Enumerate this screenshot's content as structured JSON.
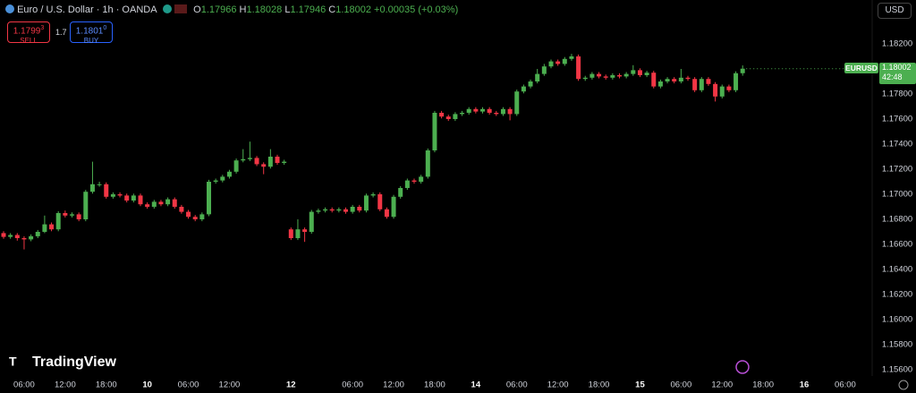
{
  "chart_data": {
    "type": "candlestick",
    "title": "Euro / U.S. Dollar · 1h · OANDA",
    "header": {
      "open_label": "O",
      "open": "1.17966",
      "high_label": "H",
      "high": "1.18028",
      "low_label": "L",
      "low": "1.17946",
      "close_label": "C",
      "close": "1.18002",
      "change": "+0.00035 (+0.03%)"
    },
    "trade": {
      "sell_price": "1.1799",
      "sell_pip": "3",
      "sell_label": "SELL",
      "spread": "1.7",
      "buy_price": "1.1801",
      "buy_pip": "0",
      "buy_label": "BUY"
    },
    "currency": "USD",
    "price_label": {
      "symbol": "EURUSD",
      "price": "1.18002",
      "countdown": "42:48"
    },
    "brand": "TradingView",
    "up_color": "#4caf50",
    "down_color": "#f23645",
    "grid": false,
    "categories": [
      null,
      null,
      null,
      "06:00",
      null,
      null,
      null,
      null,
      null,
      "12:00",
      null,
      null,
      null,
      null,
      null,
      "18:00",
      null,
      null,
      null,
      null,
      null,
      "10",
      null,
      null,
      null,
      null,
      null,
      "06:00",
      null,
      null,
      null,
      null,
      null,
      "12:00",
      null,
      null,
      null,
      null,
      null,
      null,
      null,
      null,
      "12",
      null,
      null,
      null,
      null,
      null,
      null,
      null,
      null,
      "06:00",
      null,
      null,
      null,
      null,
      null,
      "12:00",
      null,
      null,
      null,
      null,
      null,
      "18:00",
      null,
      null,
      null,
      null,
      null,
      "14",
      null,
      null,
      null,
      null,
      null,
      "06:00",
      null,
      null,
      null,
      null,
      null,
      "12:00",
      null,
      null,
      null,
      null,
      null,
      "18:00",
      null,
      null,
      null,
      null,
      null,
      "15",
      null,
      null,
      null,
      null,
      null,
      "06:00",
      null,
      null,
      null,
      null,
      null,
      "12:00",
      null,
      null,
      null,
      null,
      null,
      "18:00",
      null,
      null,
      null,
      null,
      null,
      "16",
      null,
      null,
      null,
      null,
      null,
      "06:00"
    ],
    "open": [
      1.1669,
      1.1666,
      1.16675,
      1.1665,
      1.1664,
      1.16665,
      1.167,
      1.1676,
      1.1672,
      1.1685,
      1.1683,
      1.1684,
      1.168,
      1.1702,
      1.1708,
      1.1708,
      1.1698,
      1.17,
      1.1699,
      1.1695,
      1.1699,
      1.1692,
      1.169,
      1.1694,
      1.1692,
      1.1696,
      1.169,
      1.1686,
      1.1682,
      1.168,
      1.1684,
      1.171,
      1.1711,
      1.1714,
      1.1718,
      1.1727,
      1.1728,
      1.1729,
      1.1724,
      1.1722,
      1.173,
      1.1725,
      1.1672,
      1.1665,
      1.1672,
      1.167,
      1.1686,
      1.1687,
      1.1688,
      1.1687,
      1.1688,
      1.1686,
      1.169,
      1.1687,
      1.1699,
      1.17,
      1.1688,
      1.1682,
      1.1698,
      1.1705,
      1.1711,
      1.171,
      1.1714,
      1.1735,
      1.1765,
      1.1762,
      1.176,
      1.1764,
      1.1765,
      1.1768,
      1.1766,
      1.1768,
      1.1765,
      1.1764,
      1.1768,
      1.1764,
      1.1782,
      1.1786,
      1.179,
      1.1796,
      1.1802,
      1.1806,
      1.1804,
      1.1808,
      1.181,
      1.1792,
      1.1793,
      1.1796,
      1.1794,
      1.1793,
      1.1795,
      1.1794,
      1.1796,
      1.1799,
      1.1795,
      1.1797,
      1.1786,
      1.179,
      1.1792,
      1.179,
      1.1793,
      1.1792,
      1.1783,
      1.1792,
      1.1788,
      1.1778,
      1.1786,
      1.1783,
      1.17966,
      null,
      null,
      null,
      null,
      null,
      null,
      null,
      null,
      null,
      null,
      null,
      null,
      null,
      null,
      null
    ],
    "high": [
      1.16705,
      1.1669,
      1.1669,
      1.16665,
      1.1668,
      1.16715,
      1.1683,
      1.16775,
      1.16865,
      1.1687,
      1.16855,
      1.16855,
      1.17035,
      1.1726,
      1.171,
      1.17095,
      1.17015,
      1.17015,
      1.17005,
      1.17005,
      1.17005,
      1.16935,
      1.16955,
      1.16955,
      1.16975,
      1.16975,
      1.16915,
      1.16875,
      1.16835,
      1.16855,
      1.17115,
      1.17125,
      1.17155,
      1.17195,
      1.17285,
      1.1736,
      1.1742,
      1.17305,
      1.17255,
      1.1736,
      1.17315,
      1.17275,
      1.16735,
      1.168,
      1.16735,
      1.16875,
      1.16885,
      1.16895,
      1.16895,
      1.16895,
      1.16895,
      1.16915,
      1.16915,
      1.17005,
      1.17015,
      1.17015,
      1.16895,
      1.16995,
      1.17065,
      1.17125,
      1.17125,
      1.17155,
      1.17365,
      1.17665,
      1.17665,
      1.17635,
      1.17655,
      1.17665,
      1.17695,
      1.17695,
      1.17695,
      1.17695,
      1.17665,
      1.17695,
      1.17695,
      1.17835,
      1.17875,
      1.17915,
      1.18,
      1.1804,
      1.18075,
      1.18075,
      1.18095,
      1.1812,
      1.18115,
      1.17945,
      1.17975,
      1.17975,
      1.17955,
      1.17965,
      1.17965,
      1.17975,
      1.1803,
      1.18005,
      1.17985,
      1.17985,
      1.17915,
      1.17935,
      1.17935,
      1.18,
      1.17945,
      1.17935,
      1.17935,
      1.17935,
      1.17895,
      1.17875,
      1.17875,
      1.17981,
      1.18028,
      null,
      null,
      null,
      null,
      null,
      null,
      null,
      null,
      null,
      null,
      null,
      null,
      null,
      null,
      null
    ],
    "low": [
      1.16645,
      1.16645,
      1.1663,
      1.1656,
      1.16625,
      1.1665,
      1.1669,
      1.16705,
      1.16705,
      1.16815,
      1.16815,
      1.16785,
      1.16785,
      1.17005,
      1.1706,
      1.16965,
      1.16965,
      1.16975,
      1.16935,
      1.16935,
      1.16905,
      1.16885,
      1.16885,
      1.16905,
      1.16905,
      1.16885,
      1.16845,
      1.16805,
      1.16785,
      1.16785,
      1.16825,
      1.17085,
      1.17095,
      1.17125,
      1.17165,
      1.17255,
      1.17265,
      1.17225,
      1.1716,
      1.17205,
      1.17235,
      1.17235,
      1.16635,
      1.16635,
      1.1662,
      1.16685,
      1.16845,
      1.16855,
      1.16855,
      1.16855,
      1.16845,
      1.16845,
      1.16855,
      1.16855,
      1.16975,
      1.16865,
      1.16805,
      1.16805,
      1.16965,
      1.17035,
      1.17085,
      1.17085,
      1.17125,
      1.17335,
      1.17605,
      1.17585,
      1.17585,
      1.17625,
      1.17635,
      1.17645,
      1.17645,
      1.17635,
      1.17625,
      1.17625,
      1.1759,
      1.17625,
      1.17805,
      1.17845,
      1.17885,
      1.17945,
      1.18005,
      1.18025,
      1.18025,
      1.18065,
      1.17905,
      1.17905,
      1.17915,
      1.17925,
      1.17915,
      1.17915,
      1.17925,
      1.17925,
      1.17945,
      1.17935,
      1.17935,
      1.17845,
      1.17845,
      1.17885,
      1.17885,
      1.17885,
      1.17905,
      1.17815,
      1.17815,
      1.17865,
      1.1774,
      1.17765,
      1.17815,
      1.17815,
      1.17946,
      null,
      null,
      null,
      null,
      null,
      null,
      null,
      null,
      null,
      null,
      null,
      null,
      null,
      null,
      null
    ],
    "close": [
      1.1666,
      1.16675,
      1.1665,
      1.1664,
      1.16665,
      1.167,
      1.1676,
      1.1672,
      1.1685,
      1.1683,
      1.1684,
      1.168,
      1.1702,
      1.1708,
      1.1708,
      1.1698,
      1.17,
      1.1699,
      1.1695,
      1.1699,
      1.1692,
      1.169,
      1.1694,
      1.1692,
      1.1696,
      1.169,
      1.1686,
      1.1682,
      1.168,
      1.1684,
      1.171,
      1.1711,
      1.1714,
      1.1718,
      1.1727,
      1.1728,
      1.1729,
      1.1724,
      1.1722,
      1.173,
      1.1725,
      1.1726,
      1.1665,
      1.1672,
      1.167,
      1.1686,
      1.1687,
      1.1688,
      1.1687,
      1.1688,
      1.1686,
      1.169,
      1.1687,
      1.1699,
      1.17,
      1.1688,
      1.1682,
      1.1698,
      1.1705,
      1.1711,
      1.171,
      1.1714,
      1.1735,
      1.1765,
      1.1762,
      1.176,
      1.1764,
      1.1765,
      1.1768,
      1.1766,
      1.1768,
      1.1765,
      1.1764,
      1.1768,
      1.1764,
      1.1782,
      1.1786,
      1.179,
      1.1796,
      1.1802,
      1.1806,
      1.1804,
      1.1808,
      1.181,
      1.1792,
      1.1793,
      1.1796,
      1.1794,
      1.1793,
      1.1795,
      1.1794,
      1.1796,
      1.1799,
      1.1795,
      1.1797,
      1.1786,
      1.179,
      1.1792,
      1.179,
      1.1793,
      1.1792,
      1.1783,
      1.1792,
      1.1788,
      1.1778,
      1.1786,
      1.1783,
      1.17966,
      1.18002,
      null,
      null,
      null,
      null,
      null,
      null,
      null,
      null,
      null,
      null,
      null,
      null,
      null,
      null,
      null
    ],
    "ylim": [
      1.1555,
      1.1855
    ],
    "yticks": [
      {
        "value": 1.182,
        "label": "1.18200"
      },
      {
        "value": 1.18,
        "label": "1.18000"
      },
      {
        "value": 1.178,
        "label": "1.17800"
      },
      {
        "value": 1.176,
        "label": "1.17600"
      },
      {
        "value": 1.174,
        "label": "1.17400"
      },
      {
        "value": 1.172,
        "label": "1.17200"
      },
      {
        "value": 1.17,
        "label": "1.17000"
      },
      {
        "value": 1.168,
        "label": "1.16800"
      },
      {
        "value": 1.166,
        "label": "1.16600"
      },
      {
        "value": 1.164,
        "label": "1.16400"
      },
      {
        "value": 1.162,
        "label": "1.16200"
      },
      {
        "value": 1.16,
        "label": "1.16000"
      },
      {
        "value": 1.158,
        "label": "1.15800"
      },
      {
        "value": 1.156,
        "label": "1.15600"
      }
    ]
  }
}
